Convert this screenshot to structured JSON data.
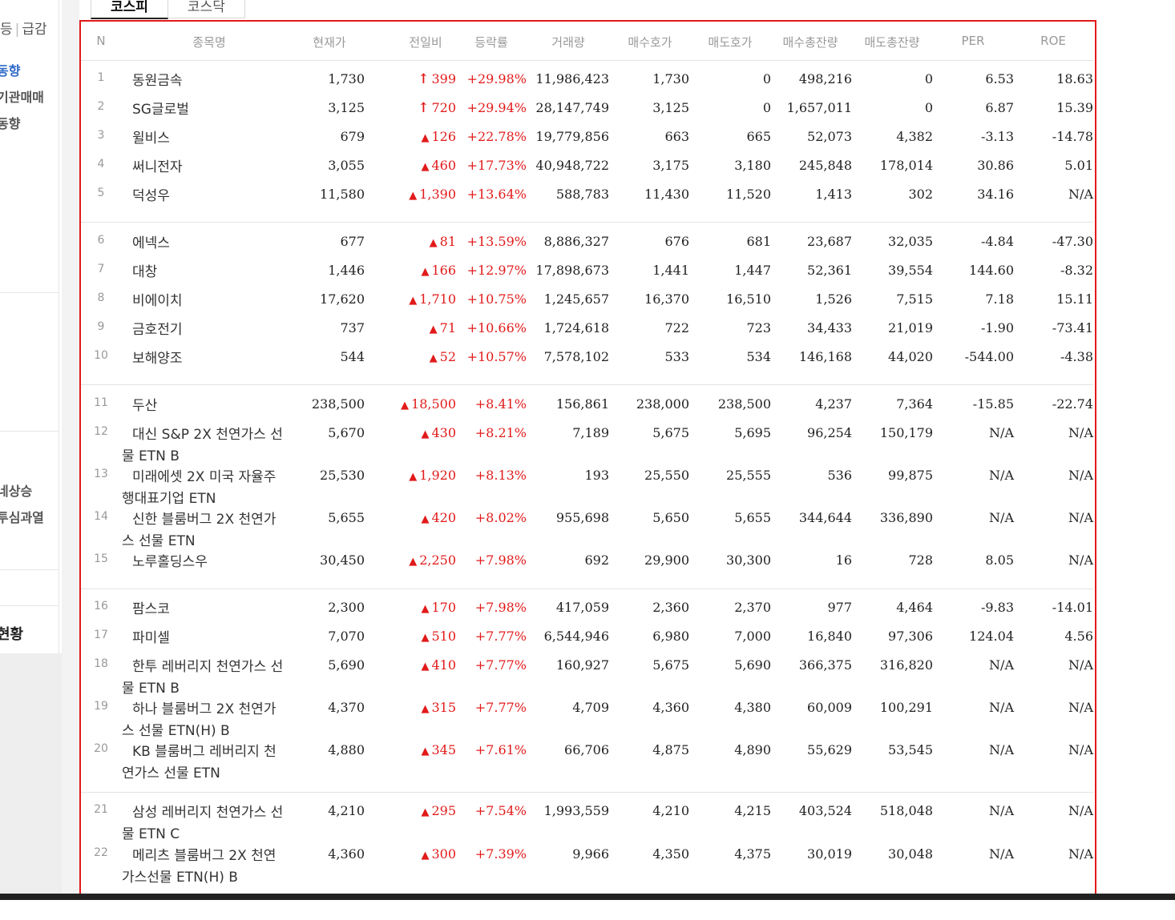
{
  "sidebar": {
    "top_items": [
      "등",
      "급감"
    ],
    "items": [
      {
        "label": "동향",
        "active": true
      },
      {
        "label": "기관매매",
        "active": false
      },
      {
        "label": "동향",
        "active": false
      },
      {
        "label": "네상승",
        "active": false
      },
      {
        "label": "투심과열",
        "active": false
      }
    ],
    "strong_label": "현황"
  },
  "tabs": [
    {
      "label": "코스피",
      "active": true
    },
    {
      "label": "코스닥",
      "active": false
    }
  ],
  "table": {
    "headers": [
      "N",
      "종목명",
      "현재가",
      "전일비",
      "등락률",
      "거래량",
      "매수호가",
      "매도호가",
      "매수총잔량",
      "매도총잔량",
      "PER",
      "ROE"
    ],
    "rows": [
      {
        "n": "1",
        "name": "동원금속",
        "price": "1,730",
        "change": "399",
        "arrow": "upper",
        "rate": "+29.98%",
        "volume": "11,986,423",
        "bid": "1,730",
        "ask": "0",
        "bid_total": "498,216",
        "ask_total": "0",
        "per": "6.53",
        "roe": "18.63"
      },
      {
        "n": "2",
        "name": "SG글로벌",
        "price": "3,125",
        "change": "720",
        "arrow": "upper",
        "rate": "+29.94%",
        "volume": "28,147,749",
        "bid": "3,125",
        "ask": "0",
        "bid_total": "1,657,011",
        "ask_total": "0",
        "per": "6.87",
        "roe": "15.39"
      },
      {
        "n": "3",
        "name": "윌비스",
        "price": "679",
        "change": "126",
        "arrow": "up",
        "rate": "+22.78%",
        "volume": "19,779,856",
        "bid": "663",
        "ask": "665",
        "bid_total": "52,073",
        "ask_total": "4,382",
        "per": "-3.13",
        "roe": "-14.78"
      },
      {
        "n": "4",
        "name": "써니전자",
        "price": "3,055",
        "change": "460",
        "arrow": "up",
        "rate": "+17.73%",
        "volume": "40,948,722",
        "bid": "3,175",
        "ask": "3,180",
        "bid_total": "245,848",
        "ask_total": "178,014",
        "per": "30.86",
        "roe": "5.01"
      },
      {
        "n": "5",
        "name": "덕성우",
        "price": "11,580",
        "change": "1,390",
        "arrow": "up",
        "rate": "+13.64%",
        "volume": "588,783",
        "bid": "11,430",
        "ask": "11,520",
        "bid_total": "1,413",
        "ask_total": "302",
        "per": "34.16",
        "roe": "N/A"
      },
      {
        "n": "6",
        "name": "에넥스",
        "price": "677",
        "change": "81",
        "arrow": "up",
        "rate": "+13.59%",
        "volume": "8,886,327",
        "bid": "676",
        "ask": "681",
        "bid_total": "23,687",
        "ask_total": "32,035",
        "per": "-4.84",
        "roe": "-47.30"
      },
      {
        "n": "7",
        "name": "대창",
        "price": "1,446",
        "change": "166",
        "arrow": "up",
        "rate": "+12.97%",
        "volume": "17,898,673",
        "bid": "1,441",
        "ask": "1,447",
        "bid_total": "52,361",
        "ask_total": "39,554",
        "per": "144.60",
        "roe": "-8.32"
      },
      {
        "n": "8",
        "name": "비에이치",
        "price": "17,620",
        "change": "1,710",
        "arrow": "up",
        "rate": "+10.75%",
        "volume": "1,245,657",
        "bid": "16,370",
        "ask": "16,510",
        "bid_total": "1,526",
        "ask_total": "7,515",
        "per": "7.18",
        "roe": "15.11"
      },
      {
        "n": "9",
        "name": "금호전기",
        "price": "737",
        "change": "71",
        "arrow": "up",
        "rate": "+10.66%",
        "volume": "1,724,618",
        "bid": "722",
        "ask": "723",
        "bid_total": "34,433",
        "ask_total": "21,019",
        "per": "-1.90",
        "roe": "-73.41"
      },
      {
        "n": "10",
        "name": "보해양조",
        "price": "544",
        "change": "52",
        "arrow": "up",
        "rate": "+10.57%",
        "volume": "7,578,102",
        "bid": "533",
        "ask": "534",
        "bid_total": "146,168",
        "ask_total": "44,020",
        "per": "-544.00",
        "roe": "-4.38"
      },
      {
        "n": "11",
        "name": "두산",
        "price": "238,500",
        "change": "18,500",
        "arrow": "up",
        "rate": "+8.41%",
        "volume": "156,861",
        "bid": "238,000",
        "ask": "238,500",
        "bid_total": "4,237",
        "ask_total": "7,364",
        "per": "-15.85",
        "roe": "-22.74"
      },
      {
        "n": "12",
        "name": "대신 S&P 2X 천연가스 선물 ETN B",
        "price": "5,670",
        "change": "430",
        "arrow": "up",
        "rate": "+8.21%",
        "volume": "7,189",
        "bid": "5,675",
        "ask": "5,695",
        "bid_total": "96,254",
        "ask_total": "150,179",
        "per": "N/A",
        "roe": "N/A"
      },
      {
        "n": "13",
        "name": "미래에셋 2X 미국 자율주행대표기업 ETN",
        "price": "25,530",
        "change": "1,920",
        "arrow": "up",
        "rate": "+8.13%",
        "volume": "193",
        "bid": "25,550",
        "ask": "25,555",
        "bid_total": "536",
        "ask_total": "99,875",
        "per": "N/A",
        "roe": "N/A"
      },
      {
        "n": "14",
        "name": "신한 블룸버그 2X 천연가스 선물 ETN",
        "price": "5,655",
        "change": "420",
        "arrow": "up",
        "rate": "+8.02%",
        "volume": "955,698",
        "bid": "5,650",
        "ask": "5,655",
        "bid_total": "344,644",
        "ask_total": "336,890",
        "per": "N/A",
        "roe": "N/A"
      },
      {
        "n": "15",
        "name": "노루홀딩스우",
        "price": "30,450",
        "change": "2,250",
        "arrow": "up",
        "rate": "+7.98%",
        "volume": "692",
        "bid": "29,900",
        "ask": "30,300",
        "bid_total": "16",
        "ask_total": "728",
        "per": "8.05",
        "roe": "N/A"
      },
      {
        "n": "16",
        "name": "팜스코",
        "price": "2,300",
        "change": "170",
        "arrow": "up",
        "rate": "+7.98%",
        "volume": "417,059",
        "bid": "2,360",
        "ask": "2,370",
        "bid_total": "977",
        "ask_total": "4,464",
        "per": "-9.83",
        "roe": "-14.01"
      },
      {
        "n": "17",
        "name": "파미셀",
        "price": "7,070",
        "change": "510",
        "arrow": "up",
        "rate": "+7.77%",
        "volume": "6,544,946",
        "bid": "6,980",
        "ask": "7,000",
        "bid_total": "16,840",
        "ask_total": "97,306",
        "per": "124.04",
        "roe": "4.56"
      },
      {
        "n": "18",
        "name": "한투 레버리지 천연가스 선물 ETN B",
        "price": "5,690",
        "change": "410",
        "arrow": "up",
        "rate": "+7.77%",
        "volume": "160,927",
        "bid": "5,675",
        "ask": "5,690",
        "bid_total": "366,375",
        "ask_total": "316,820",
        "per": "N/A",
        "roe": "N/A"
      },
      {
        "n": "19",
        "name": "하나 블룸버그 2X 천연가스 선물 ETN(H) B",
        "price": "4,370",
        "change": "315",
        "arrow": "up",
        "rate": "+7.77%",
        "volume": "4,709",
        "bid": "4,360",
        "ask": "4,380",
        "bid_total": "60,009",
        "ask_total": "100,291",
        "per": "N/A",
        "roe": "N/A"
      },
      {
        "n": "20",
        "name": "KB 블룸버그 레버리지 천연가스 선물 ETN",
        "price": "4,880",
        "change": "345",
        "arrow": "up",
        "rate": "+7.61%",
        "volume": "66,706",
        "bid": "4,875",
        "ask": "4,890",
        "bid_total": "55,629",
        "ask_total": "53,545",
        "per": "N/A",
        "roe": "N/A"
      },
      {
        "n": "21",
        "name": "삼성 레버리지 천연가스 선물 ETN C",
        "price": "4,210",
        "change": "295",
        "arrow": "up",
        "rate": "+7.54%",
        "volume": "1,993,559",
        "bid": "4,210",
        "ask": "4,215",
        "bid_total": "403,524",
        "ask_total": "518,048",
        "per": "N/A",
        "roe": "N/A"
      },
      {
        "n": "22",
        "name": "메리츠 블룸버그 2X 천연가스선물 ETN(H) B",
        "price": "4,360",
        "change": "300",
        "arrow": "up",
        "rate": "+7.39%",
        "volume": "9,966",
        "bid": "4,350",
        "ask": "4,375",
        "bid_total": "30,019",
        "ask_total": "30,048",
        "per": "N/A",
        "roe": "N/A"
      }
    ]
  },
  "colors": {
    "up_red": "#e21a1a",
    "highlight_border": "#e21a1a",
    "sidebar_active": "#2f6ac8"
  }
}
